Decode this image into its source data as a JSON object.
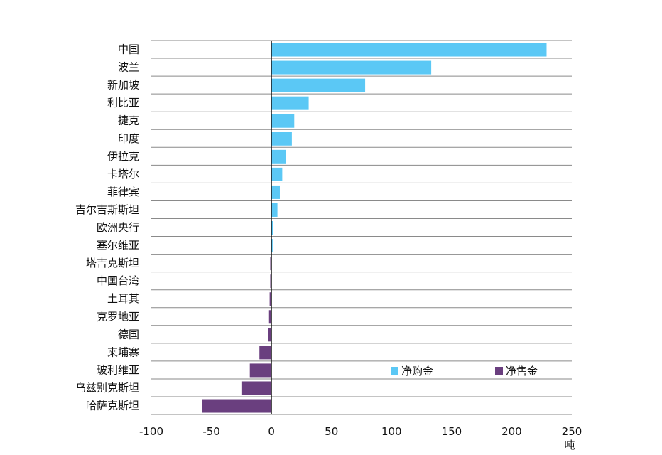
{
  "chart_data": {
    "type": "bar",
    "orientation": "horizontal",
    "categories": [
      "中国",
      "波兰",
      "新加坡",
      "利比亚",
      "捷克",
      "印度",
      "伊拉克",
      "卡塔尔",
      "菲律宾",
      "吉尔吉斯斯坦",
      "欧洲央行",
      "塞尔维亚",
      "塔吉克斯坦",
      "中国台湾",
      "土耳其",
      "克罗地亚",
      "德国",
      "柬埔寨",
      "玻利维亚",
      "乌兹别克斯坦",
      "哈萨克斯坦"
    ],
    "series": [
      {
        "name": "净购金",
        "color": "#5bc8f5",
        "values": [
          229,
          133,
          78,
          31,
          19,
          17,
          12,
          9,
          7,
          5,
          1.5,
          1,
          null,
          null,
          null,
          null,
          null,
          null,
          null,
          null,
          null
        ]
      },
      {
        "name": "净售金",
        "color": "#6a3f7f",
        "values": [
          null,
          null,
          null,
          null,
          null,
          null,
          null,
          null,
          null,
          null,
          null,
          null,
          -1,
          -1,
          -1.5,
          -2,
          -2.5,
          -10,
          -18,
          -25,
          -58
        ]
      }
    ],
    "xlim": [
      -100,
      250
    ],
    "xticks": [
      "-100",
      "-50",
      "0",
      "50",
      "100",
      "150",
      "200",
      "250"
    ],
    "xlabel": "吨",
    "legend": {
      "position": "bottom-right"
    },
    "grid": "horizontal"
  }
}
